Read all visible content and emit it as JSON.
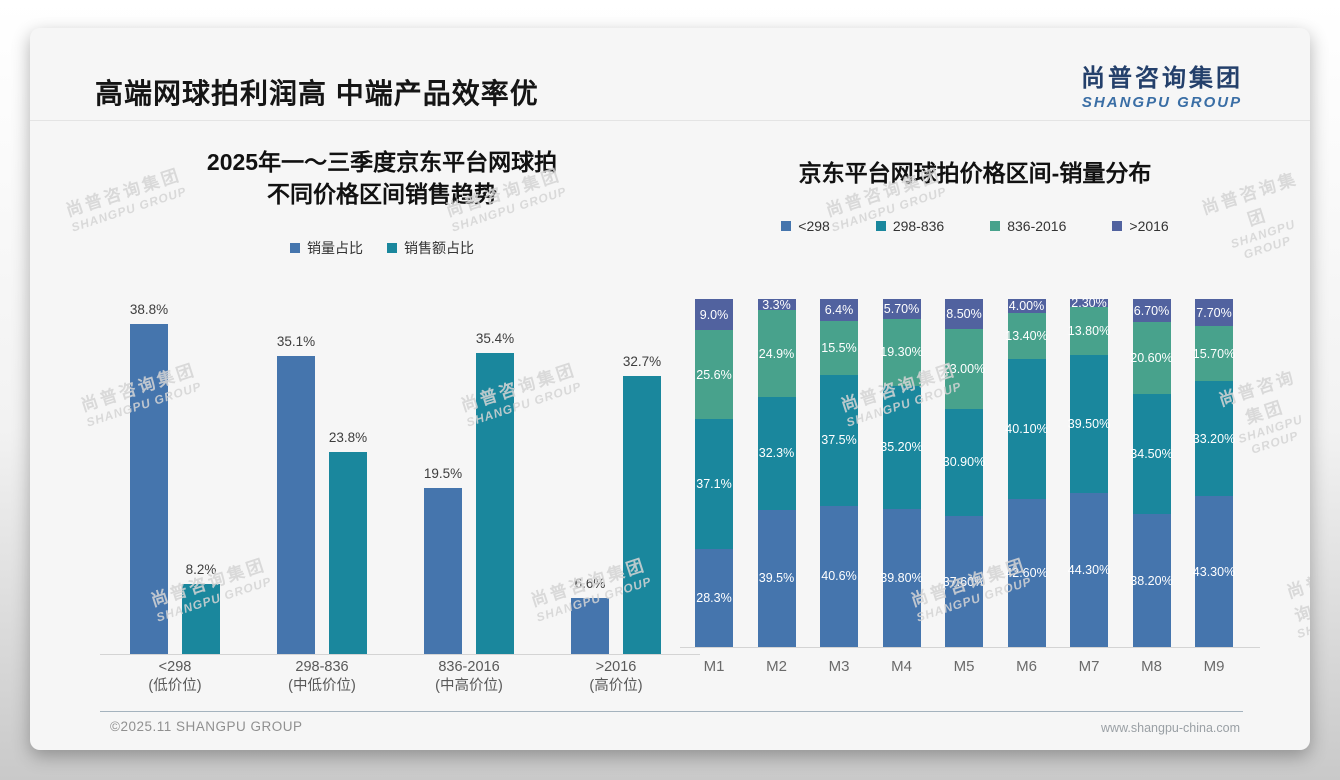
{
  "page": {
    "title": "高端网球拍利润高 中端产品效率优",
    "logo": {
      "cn": "尚普咨询集团",
      "en": "SHANGPU GROUP"
    },
    "watermark": {
      "cn": "尚普咨询集团",
      "en": "SHANGPU GROUP"
    },
    "footer": {
      "copyright": "©2025.11 SHANGPU GROUP",
      "website": "www.shangpu-china.com"
    }
  },
  "colors": {
    "series_blue": "#4575ad",
    "series_teal": "#1a879d",
    "series_green": "#48a28c",
    "series_indigo": "#51629f",
    "logo_navy": "#24406b",
    "logo_blue": "#3a6ea5"
  },
  "chart_data": [
    {
      "type": "bar",
      "title_lines": [
        "2025年一～三季度京东平台网球拍",
        "不同价格区间销售趋势"
      ],
      "categories": [
        {
          "label": "<298",
          "sub": "(低价位)"
        },
        {
          "label": "298-836",
          "sub": "(中低价位)"
        },
        {
          "label": "836-2016",
          "sub": "(中高价位)"
        },
        {
          "label": ">2016",
          "sub": "(高价位)"
        }
      ],
      "series": [
        {
          "name": "销量占比",
          "color": "#4575ad",
          "values": [
            38.8,
            35.1,
            19.5,
            6.6
          ],
          "labels": [
            "38.8%",
            "35.1%",
            "19.5%",
            "6.6%"
          ]
        },
        {
          "name": "销售额占比",
          "color": "#1a879d",
          "values": [
            8.2,
            23.8,
            35.4,
            32.7
          ],
          "labels": [
            "8.2%",
            "23.8%",
            "35.4%",
            "32.7%"
          ]
        }
      ],
      "ylabel": "",
      "xlabel": "",
      "ylim": [
        0,
        40
      ],
      "grid": false,
      "legend_position": "top"
    },
    {
      "type": "bar",
      "subtype": "stacked-100",
      "title": "京东平台网球拍价格区间-销量分布",
      "categories": [
        "M1",
        "M2",
        "M3",
        "M4",
        "M5",
        "M6",
        "M7",
        "M8",
        "M9"
      ],
      "series": [
        {
          "name": "<298",
          "color": "#4575ad",
          "values": [
            28.3,
            39.5,
            40.6,
            39.8,
            37.6,
            42.6,
            44.3,
            38.2,
            43.3
          ],
          "labels": [
            "28.3%",
            "39.5%",
            "40.6%",
            "39.80%",
            "37.60%",
            "42.60%",
            "44.30%",
            "38.20%",
            "43.30%"
          ]
        },
        {
          "name": "298-836",
          "color": "#1a879d",
          "values": [
            37.1,
            32.3,
            37.5,
            35.2,
            30.9,
            40.1,
            39.5,
            34.5,
            33.2
          ],
          "labels": [
            "37.1%",
            "32.3%",
            "37.5%",
            "35.20%",
            "30.90%",
            "40.10%",
            "39.50%",
            "34.50%",
            "33.20%"
          ]
        },
        {
          "name": "836-2016",
          "color": "#48a28c",
          "values": [
            25.6,
            24.9,
            15.5,
            19.3,
            23.0,
            13.4,
            13.8,
            20.6,
            15.7
          ],
          "labels": [
            "25.6%",
            "24.9%",
            "15.5%",
            "19.30%",
            "23.00%",
            "13.40%",
            "13.80%",
            "20.60%",
            "15.70%"
          ]
        },
        {
          "name": ">2016",
          "color": "#51629f",
          "values": [
            9.0,
            3.3,
            6.4,
            5.7,
            8.5,
            4.0,
            2.3,
            6.7,
            7.7
          ],
          "labels": [
            "9.0%",
            "3.3%",
            "6.4%",
            "5.70%",
            "8.50%",
            "4.00%",
            "2.30%",
            "6.70%",
            "7.70%"
          ]
        }
      ],
      "ylabel": "",
      "xlabel": "",
      "ylim": [
        0,
        100
      ],
      "grid": false,
      "legend_position": "top"
    }
  ]
}
